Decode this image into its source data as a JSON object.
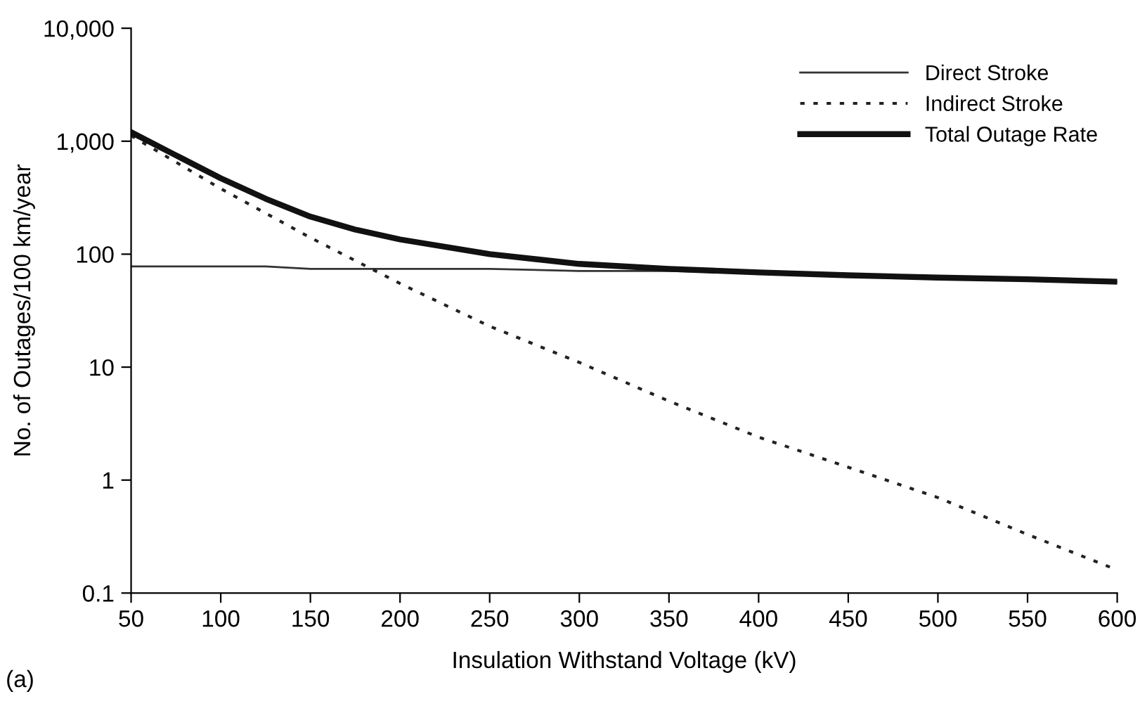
{
  "chart_data": {
    "type": "line",
    "xlabel": "Insulation Withstand Voltage (kV)",
    "ylabel": "No. of Outages/100 km/year",
    "annotations": [
      "(a)"
    ],
    "log": "y",
    "xlim": [
      50,
      600
    ],
    "xticks": [
      50,
      100,
      150,
      200,
      250,
      300,
      350,
      400,
      450,
      500,
      550,
      600
    ],
    "ylim": [
      0.1,
      10000
    ],
    "yticks": [
      {
        "value": 0.1,
        "label": "0.1"
      },
      1,
      10,
      100,
      {
        "value": 1000,
        "label": "1,000"
      },
      {
        "value": 10000,
        "label": "10,000"
      }
    ],
    "grid": false,
    "legend": "top right",
    "marker": "none",
    "series": [
      {
        "name": "Direct Stroke",
        "color": "#333333",
        "line_style": "solid",
        "x": [
          50,
          100,
          125,
          150,
          200,
          250,
          300,
          350,
          400,
          450,
          500,
          550,
          600
        ],
        "values": [
          78,
          78,
          78,
          74,
          74,
          74,
          71,
          71,
          68,
          65,
          62,
          60,
          57
        ]
      },
      {
        "name": "Indirect Stroke",
        "color": "#222222",
        "line_style": "dotted",
        "x": [
          50,
          100,
          150,
          200,
          250,
          300,
          350,
          400,
          450,
          500,
          550,
          600
        ],
        "values": [
          1120,
          380,
          140,
          55,
          23,
          11,
          5,
          2.4,
          1.3,
          0.7,
          0.33,
          0.16
        ]
      },
      {
        "name": "Total Outage Rate",
        "color": "#111111",
        "line_style": "solid",
        "x": [
          50,
          75,
          100,
          125,
          150,
          175,
          200,
          250,
          300,
          350,
          400,
          450,
          500,
          550,
          600
        ],
        "values": [
          1200,
          750,
          470,
          310,
          215,
          165,
          135,
          100,
          82,
          74,
          69,
          65,
          62,
          60,
          57
        ]
      }
    ]
  }
}
